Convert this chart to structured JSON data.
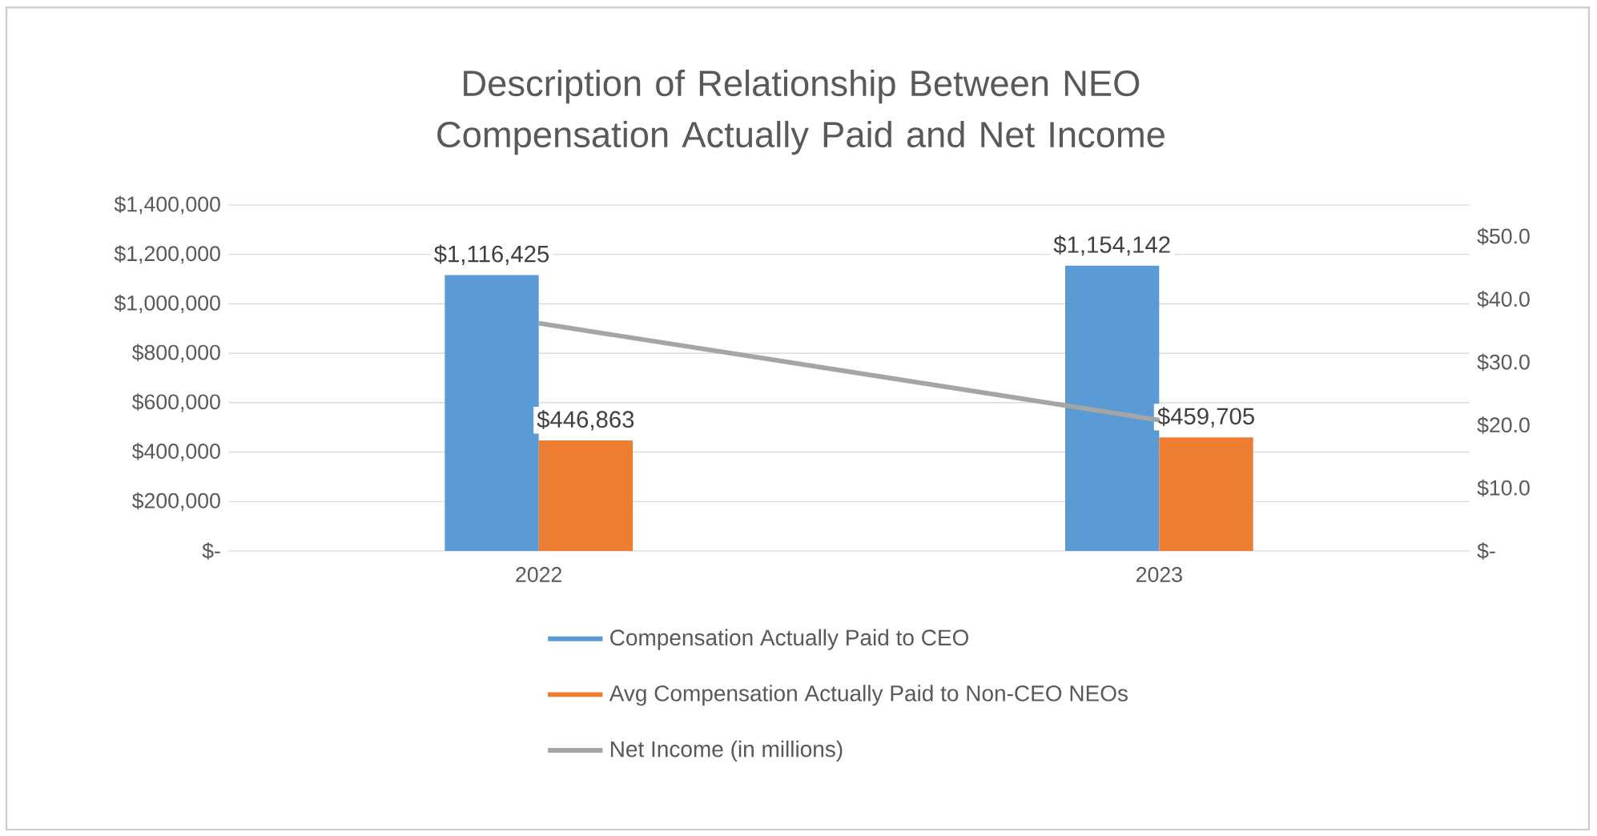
{
  "chart_data": {
    "type": "bar",
    "title": "Description of Relationship Between NEO Compensation Actually Paid and Net Income",
    "categories": [
      "2022",
      "2023"
    ],
    "series": [
      {
        "name": "Compensation Actually Paid to CEO",
        "color": "#5b9bd5",
        "values": [
          1116425,
          1154142
        ],
        "value_labels": [
          "$1,116,425",
          "$1,154,142"
        ]
      },
      {
        "name": "Avg Compensation Actually Paid to Non-CEO NEOs",
        "color": "#ed7d31",
        "values": [
          446863,
          459705
        ],
        "value_labels": [
          "$446,863",
          "$459,705"
        ]
      },
      {
        "name": "Net Income (in millions)",
        "type": "line",
        "axis": "y2",
        "color": "#a5a5a5",
        "values": [
          36.2,
          20.8
        ]
      }
    ],
    "ylim": [
      0,
      1400000
    ],
    "yticks": [
      {
        "value": 0,
        "label": "$-"
      },
      {
        "value": 200000,
        "label": "$200,000"
      },
      {
        "value": 400000,
        "label": "$400,000"
      },
      {
        "value": 600000,
        "label": "$600,000"
      },
      {
        "value": 800000,
        "label": "$800,000"
      },
      {
        "value": 1000000,
        "label": "$1,000,000"
      },
      {
        "value": 1200000,
        "label": "$1,200,000"
      },
      {
        "value": 1400000,
        "label": "$1,400,000"
      }
    ],
    "y2lim": [
      0,
      55
    ],
    "y2ticks": [
      {
        "value": 0,
        "label": "$-"
      },
      {
        "value": 10,
        "label": "$10.0"
      },
      {
        "value": 20,
        "label": "$20.0"
      },
      {
        "value": 30,
        "label": "$30.0"
      },
      {
        "value": 40,
        "label": "$40.0"
      },
      {
        "value": 50,
        "label": "$50.0"
      }
    ],
    "grid": "y",
    "legend": "bottom",
    "marker": "none"
  }
}
